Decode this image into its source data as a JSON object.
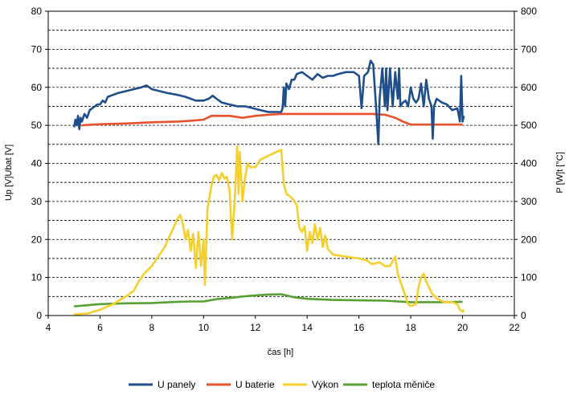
{
  "chart_data": {
    "type": "line",
    "xlabel": "čas [h]",
    "ylabel_left": "Up [V]Ubat [V]",
    "ylabel_right": "P [W]t [°C]",
    "xlim": [
      4,
      22
    ],
    "x_ticks": [
      4,
      6,
      8,
      10,
      12,
      14,
      16,
      18,
      20,
      22
    ],
    "ylim_left": [
      0,
      80
    ],
    "y_ticks_left": [
      0,
      10,
      20,
      30,
      40,
      50,
      60,
      70,
      80
    ],
    "ylim_right": [
      0,
      800
    ],
    "y_ticks_right": [
      0,
      100,
      200,
      300,
      400,
      500,
      600,
      700,
      800
    ],
    "grid": "horizontal dashed",
    "legend_position": "bottom",
    "series": [
      {
        "name": "U panely",
        "axis": "left",
        "color": "#1f4e8c",
        "points": [
          [
            5.0,
            49.5
          ],
          [
            5.05,
            51.5
          ],
          [
            5.1,
            50
          ],
          [
            5.15,
            52.5
          ],
          [
            5.2,
            49
          ],
          [
            5.25,
            52
          ],
          [
            5.3,
            51
          ],
          [
            5.4,
            53
          ],
          [
            5.5,
            52
          ],
          [
            5.6,
            54
          ],
          [
            5.7,
            54.5
          ],
          [
            5.8,
            55
          ],
          [
            5.9,
            55.5
          ],
          [
            6.0,
            55.5
          ],
          [
            6.1,
            56.5
          ],
          [
            6.2,
            56
          ],
          [
            6.3,
            57.5
          ],
          [
            6.5,
            58
          ],
          [
            6.7,
            58.5
          ],
          [
            7.0,
            59
          ],
          [
            7.3,
            59.5
          ],
          [
            7.6,
            60
          ],
          [
            7.8,
            60.5
          ],
          [
            8.0,
            59.5
          ],
          [
            8.3,
            59
          ],
          [
            8.6,
            58.5
          ],
          [
            9.0,
            58
          ],
          [
            9.3,
            57.5
          ],
          [
            9.5,
            57
          ],
          [
            9.7,
            56.5
          ],
          [
            10.0,
            56.5
          ],
          [
            10.2,
            57
          ],
          [
            10.35,
            57.8
          ],
          [
            10.5,
            57
          ],
          [
            10.7,
            56
          ],
          [
            11.0,
            55.5
          ],
          [
            11.3,
            55
          ],
          [
            11.6,
            55
          ],
          [
            11.9,
            54.5
          ],
          [
            12.2,
            54
          ],
          [
            12.5,
            53.5
          ],
          [
            12.8,
            53.5
          ],
          [
            13.0,
            53.5
          ],
          [
            13.05,
            54.5
          ],
          [
            13.1,
            60
          ],
          [
            13.15,
            55
          ],
          [
            13.2,
            61
          ],
          [
            13.3,
            59.5
          ],
          [
            13.4,
            62
          ],
          [
            13.5,
            62
          ],
          [
            13.6,
            63.5
          ],
          [
            13.8,
            64
          ],
          [
            14.0,
            63
          ],
          [
            14.2,
            62
          ],
          [
            14.4,
            63.5
          ],
          [
            14.6,
            62.5
          ],
          [
            14.8,
            63
          ],
          [
            15.0,
            63
          ],
          [
            15.2,
            63.5
          ],
          [
            15.5,
            64
          ],
          [
            15.8,
            64
          ],
          [
            16.0,
            63
          ],
          [
            16.1,
            54.5
          ],
          [
            16.2,
            63
          ],
          [
            16.35,
            64
          ],
          [
            16.45,
            67
          ],
          [
            16.55,
            66
          ],
          [
            16.65,
            56
          ],
          [
            16.75,
            45
          ],
          [
            16.8,
            57
          ],
          [
            16.9,
            65
          ],
          [
            17.0,
            55
          ],
          [
            17.05,
            65
          ],
          [
            17.1,
            54
          ],
          [
            17.2,
            65
          ],
          [
            17.3,
            55
          ],
          [
            17.4,
            64
          ],
          [
            17.5,
            57
          ],
          [
            17.55,
            65
          ],
          [
            17.6,
            55
          ],
          [
            17.7,
            56
          ],
          [
            17.8,
            56.5
          ],
          [
            17.9,
            55
          ],
          [
            18.0,
            60
          ],
          [
            18.1,
            57
          ],
          [
            18.2,
            56
          ],
          [
            18.3,
            57
          ],
          [
            18.4,
            61
          ],
          [
            18.5,
            55
          ],
          [
            18.6,
            62
          ],
          [
            18.7,
            57
          ],
          [
            18.8,
            55
          ],
          [
            18.85,
            46.5
          ],
          [
            18.9,
            55
          ],
          [
            19.0,
            57
          ],
          [
            19.2,
            56
          ],
          [
            19.4,
            55.5
          ],
          [
            19.6,
            54
          ],
          [
            19.8,
            54.5
          ],
          [
            19.9,
            51
          ],
          [
            19.95,
            63
          ],
          [
            20.0,
            51
          ],
          [
            20.05,
            52.5
          ]
        ]
      },
      {
        "name": "U baterie",
        "axis": "left",
        "color": "#e8512a",
        "points": [
          [
            5.3,
            50
          ],
          [
            6.0,
            50.3
          ],
          [
            7.0,
            50.5
          ],
          [
            8.0,
            50.8
          ],
          [
            9.0,
            51
          ],
          [
            9.5,
            51.2
          ],
          [
            10.0,
            51.5
          ],
          [
            10.3,
            52.5
          ],
          [
            11.0,
            52.5
          ],
          [
            11.5,
            52
          ],
          [
            12.0,
            52.5
          ],
          [
            12.5,
            52.8
          ],
          [
            13.0,
            53
          ],
          [
            14.0,
            53
          ],
          [
            15.0,
            53
          ],
          [
            16.0,
            53
          ],
          [
            16.5,
            53
          ],
          [
            17.0,
            52.8
          ],
          [
            17.4,
            52
          ],
          [
            17.7,
            51
          ],
          [
            18.0,
            50.2
          ],
          [
            19.0,
            50.2
          ],
          [
            20.0,
            50.2
          ]
        ]
      },
      {
        "name": "Výkon",
        "axis": "right",
        "color": "#f5cf2b",
        "points": [
          [
            5.0,
            3
          ],
          [
            5.5,
            5
          ],
          [
            6.0,
            15
          ],
          [
            6.5,
            30
          ],
          [
            7.0,
            50
          ],
          [
            7.3,
            65
          ],
          [
            7.5,
            90
          ],
          [
            7.7,
            110
          ],
          [
            8.0,
            130
          ],
          [
            8.3,
            160
          ],
          [
            8.5,
            180
          ],
          [
            8.7,
            210
          ],
          [
            9.0,
            255
          ],
          [
            9.1,
            265
          ],
          [
            9.2,
            240
          ],
          [
            9.3,
            200
          ],
          [
            9.4,
            225
          ],
          [
            9.5,
            170
          ],
          [
            9.6,
            215
          ],
          [
            9.7,
            125
          ],
          [
            9.8,
            220
          ],
          [
            9.9,
            130
          ],
          [
            10.0,
            200
          ],
          [
            10.05,
            80
          ],
          [
            10.15,
            280
          ],
          [
            10.3,
            340
          ],
          [
            10.4,
            365
          ],
          [
            10.5,
            370
          ],
          [
            10.6,
            355
          ],
          [
            10.7,
            375
          ],
          [
            10.8,
            360
          ],
          [
            10.9,
            365
          ],
          [
            11.0,
            330
          ],
          [
            11.1,
            200
          ],
          [
            11.2,
            300
          ],
          [
            11.3,
            445
          ],
          [
            11.35,
            320
          ],
          [
            11.4,
            430
          ],
          [
            11.5,
            300
          ],
          [
            11.6,
            360
          ],
          [
            11.7,
            400
          ],
          [
            11.8,
            390
          ],
          [
            12.0,
            390
          ],
          [
            12.2,
            410
          ],
          [
            12.5,
            420
          ],
          [
            12.8,
            430
          ],
          [
            13.0,
            435
          ],
          [
            13.1,
            345
          ],
          [
            13.2,
            320
          ],
          [
            13.4,
            310
          ],
          [
            13.6,
            290
          ],
          [
            13.7,
            230
          ],
          [
            13.8,
            220
          ],
          [
            13.9,
            235
          ],
          [
            14.0,
            170
          ],
          [
            14.1,
            220
          ],
          [
            14.2,
            190
          ],
          [
            14.3,
            240
          ],
          [
            14.4,
            200
          ],
          [
            14.5,
            230
          ],
          [
            14.6,
            180
          ],
          [
            14.7,
            210
          ],
          [
            14.8,
            175
          ],
          [
            15.0,
            160
          ],
          [
            15.5,
            155
          ],
          [
            16.0,
            150
          ],
          [
            16.3,
            145
          ],
          [
            16.5,
            135
          ],
          [
            16.8,
            140
          ],
          [
            17.0,
            130
          ],
          [
            17.2,
            130
          ],
          [
            17.4,
            155
          ],
          [
            17.5,
            110
          ],
          [
            17.7,
            70
          ],
          [
            17.9,
            30
          ],
          [
            18.0,
            25
          ],
          [
            18.2,
            30
          ],
          [
            18.3,
            75
          ],
          [
            18.4,
            100
          ],
          [
            18.5,
            110
          ],
          [
            18.6,
            90
          ],
          [
            18.7,
            75
          ],
          [
            18.8,
            60
          ],
          [
            19.0,
            45
          ],
          [
            19.3,
            35
          ],
          [
            19.6,
            35
          ],
          [
            19.8,
            30
          ],
          [
            19.9,
            15
          ],
          [
            20.0,
            10
          ],
          [
            20.05,
            15
          ]
        ]
      },
      {
        "name": "teplota měniče",
        "axis": "right",
        "color": "#58a033",
        "points": [
          [
            5.0,
            24
          ],
          [
            5.5,
            27
          ],
          [
            6.0,
            30
          ],
          [
            7.0,
            32
          ],
          [
            8.0,
            33
          ],
          [
            9.0,
            36
          ],
          [
            9.5,
            37
          ],
          [
            10.0,
            37
          ],
          [
            10.5,
            43
          ],
          [
            11.0,
            46
          ],
          [
            11.5,
            50
          ],
          [
            12.0,
            53
          ],
          [
            12.5,
            55
          ],
          [
            13.0,
            56
          ],
          [
            13.5,
            48
          ],
          [
            14.0,
            44
          ],
          [
            15.0,
            41
          ],
          [
            16.0,
            40
          ],
          [
            17.0,
            39
          ],
          [
            18.0,
            35
          ],
          [
            19.0,
            35
          ],
          [
            20.0,
            36
          ]
        ]
      }
    ]
  }
}
